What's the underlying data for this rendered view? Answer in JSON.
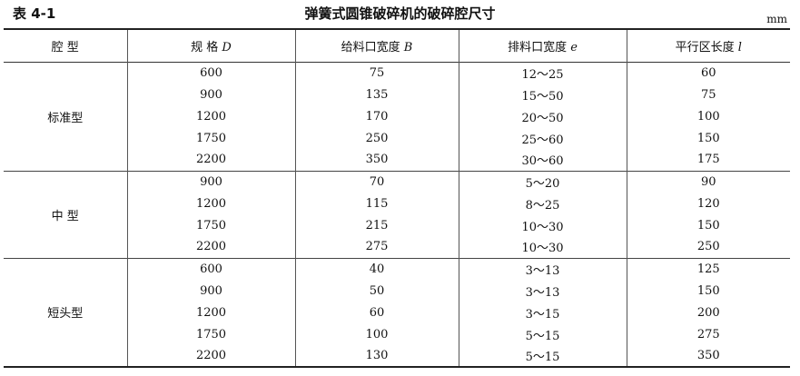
{
  "table_number": "表 4-1",
  "title": "弹簧式圆锥破碎机的破碎腔尺寸",
  "unit": "mm",
  "headers": [
    {
      "label": "腔  型",
      "symbol": ""
    },
    {
      "label": "规  格 ",
      "symbol": "D"
    },
    {
      "label": "给料口宽度 ",
      "symbol": "B"
    },
    {
      "label": "排料口宽度 ",
      "symbol": "e"
    },
    {
      "label": "平行区长度 ",
      "symbol": "l"
    }
  ],
  "groups": [
    {
      "type": "标准型",
      "rows": [
        [
          "600",
          "75",
          "12～25",
          "60"
        ],
        [
          "900",
          "135",
          "15～50",
          "75"
        ],
        [
          "1200",
          "170",
          "20～50",
          "100"
        ],
        [
          "1750",
          "250",
          "25～60",
          "150"
        ],
        [
          "2200",
          "350",
          "30～60",
          "175"
        ]
      ]
    },
    {
      "type": "中  型",
      "rows": [
        [
          "900",
          "70",
          "5～20",
          "90"
        ],
        [
          "1200",
          "115",
          "8～25",
          "120"
        ],
        [
          "1750",
          "215",
          "10～30",
          "150"
        ],
        [
          "2200",
          "275",
          "10～30",
          "250"
        ]
      ]
    },
    {
      "type": "短头型",
      "rows": [
        [
          "600",
          "40",
          "3～13",
          "125"
        ],
        [
          "900",
          "50",
          "3～13",
          "150"
        ],
        [
          "1200",
          "60",
          "3～15",
          "200"
        ],
        [
          "1750",
          "100",
          "5～15",
          "275"
        ],
        [
          "2200",
          "130",
          "5～15",
          "350"
        ]
      ]
    }
  ]
}
